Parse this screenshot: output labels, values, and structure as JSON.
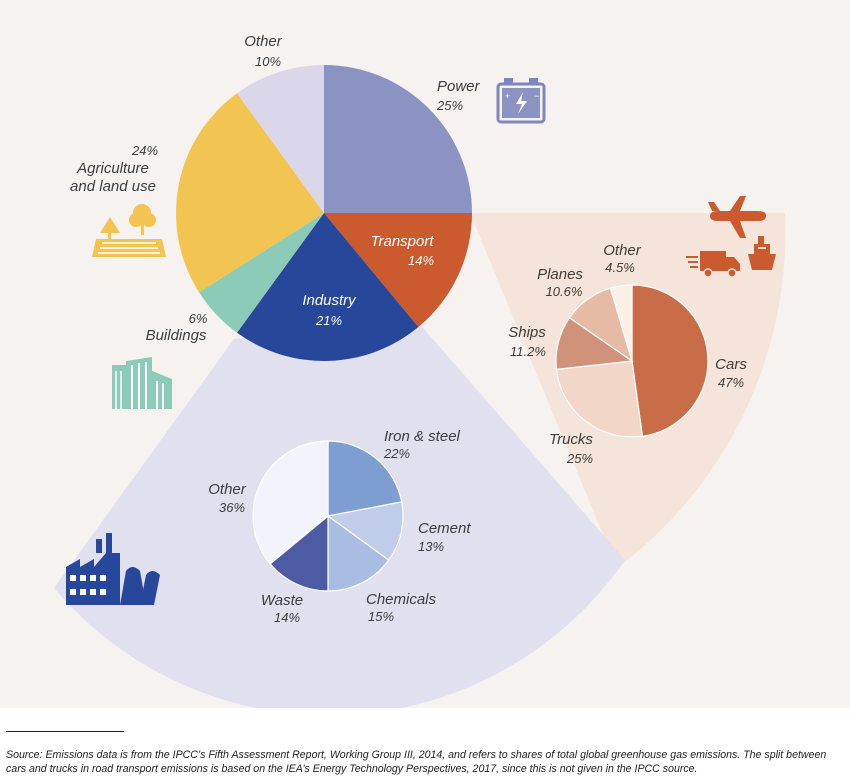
{
  "chart_data": [
    {
      "type": "pie",
      "categories": [
        "Power",
        "Transport",
        "Industry",
        "Buildings",
        "Agriculture and land use",
        "Other"
      ],
      "values": [
        25,
        14,
        21,
        6,
        24,
        10
      ],
      "unit": "%",
      "colors": [
        "#8b93c3",
        "#cb5a2e",
        "#26479a",
        "#8ccbb7",
        "#f2c552",
        "#dad7ea"
      ]
    },
    {
      "type": "pie",
      "parent": "Industry",
      "categories": [
        "Iron & steel",
        "Cement",
        "Chemicals",
        "Waste",
        "Other"
      ],
      "values": [
        22,
        13,
        15,
        14,
        36
      ],
      "unit": "%",
      "colors": [
        "#7e9ed1",
        "#bfcdeb",
        "#a9bde2",
        "#4c5ba3",
        "#f3f3fb"
      ]
    },
    {
      "type": "pie",
      "parent": "Transport",
      "categories": [
        "Cars",
        "Trucks",
        "Ships",
        "Planes",
        "Other"
      ],
      "values": [
        47,
        25,
        11.2,
        10.6,
        4.5
      ],
      "unit": "%",
      "colors": [
        "#c96c48",
        "#f2d6c7",
        "#d0937a",
        "#e6bba6",
        "#fbf0e8"
      ]
    }
  ],
  "labels": {
    "main": {
      "power": {
        "name": "Power",
        "pct": "25%"
      },
      "transport": {
        "name": "Transport",
        "pct": "14%"
      },
      "industry": {
        "name": "Industry",
        "pct": "21%"
      },
      "buildings": {
        "name": "Buildings",
        "pct": "6%"
      },
      "agriculture": {
        "line1": "Agriculture",
        "line2": "and land use",
        "pct": "24%"
      },
      "other": {
        "name": "Other",
        "pct": "10%"
      }
    },
    "industry": {
      "iron": {
        "name": "Iron & steel",
        "pct": "22%"
      },
      "cement": {
        "name": "Cement",
        "pct": "13%"
      },
      "chemicals": {
        "name": "Chemicals",
        "pct": "15%"
      },
      "waste": {
        "name": "Waste",
        "pct": "14%"
      },
      "other": {
        "name": "Other",
        "pct": "36%"
      }
    },
    "transport": {
      "cars": {
        "name": "Cars",
        "pct": "47%"
      },
      "trucks": {
        "name": "Trucks",
        "pct": "25%"
      },
      "ships": {
        "name": "Ships",
        "pct": "11.2%"
      },
      "planes": {
        "name": "Planes",
        "pct": "10.6%"
      },
      "other": {
        "name": "Other",
        "pct": "4.5%"
      }
    }
  },
  "icons": [
    "battery-icon",
    "farm-icon",
    "building-icon",
    "factory-icon",
    "plane-icon",
    "truck-icon",
    "ship-icon"
  ],
  "source_note": "Source: Emissions data is from the IPCC’s Fifth Assessment Report, Working Group III, 2014, and refers to shares of total global greenhouse gas emissions. The split between cars and trucks in road transport emissions is based on the IEA’s Energy Technology Perspectives, 2017, since this is not given in the IPCC source."
}
